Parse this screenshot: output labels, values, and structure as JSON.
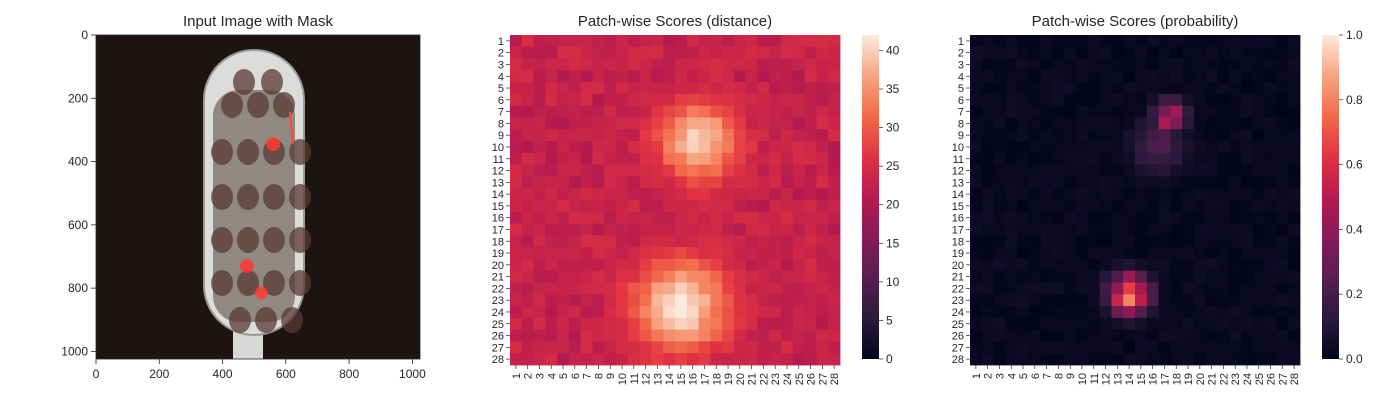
{
  "chart_data": [
    {
      "type": "image",
      "title": "Input Image with Mask",
      "xlim": [
        0,
        1024
      ],
      "ylim": [
        1024,
        0
      ],
      "xticks": [
        0,
        200,
        400,
        600,
        800,
        1000
      ],
      "yticks": [
        0,
        200,
        400,
        600,
        800,
        1000
      ],
      "mask_regions": [
        {
          "x": 560,
          "y": 345,
          "r": 22
        },
        {
          "x": 477,
          "y": 730,
          "r": 22
        },
        {
          "x": 522,
          "y": 815,
          "r": 20
        }
      ],
      "mask_color": "#ff3b2f"
    },
    {
      "type": "heatmap",
      "title": "Patch-wise Scores (distance)",
      "rows": 28,
      "cols": 28,
      "tick_labels": [
        "1",
        "2",
        "3",
        "4",
        "5",
        "6",
        "7",
        "8",
        "9",
        "10",
        "11",
        "12",
        "13",
        "14",
        "15",
        "16",
        "17",
        "18",
        "19",
        "20",
        "21",
        "22",
        "23",
        "24",
        "25",
        "26",
        "27",
        "28"
      ],
      "colorbar": {
        "min": 0,
        "max": 42,
        "ticks": [
          0,
          5,
          10,
          15,
          20,
          25,
          30,
          35,
          40
        ]
      },
      "colormap": "rocket",
      "baseline": 22,
      "hotspots": [
        {
          "row": 9.5,
          "col": 16.5,
          "peak": 40,
          "spread": 2.4
        },
        {
          "row": 23.5,
          "col": 15.0,
          "peak": 42,
          "spread": 2.8
        }
      ]
    },
    {
      "type": "heatmap",
      "title": "Patch-wise Scores (probability)",
      "rows": 28,
      "cols": 28,
      "tick_labels": [
        "1",
        "2",
        "3",
        "4",
        "5",
        "6",
        "7",
        "8",
        "9",
        "10",
        "11",
        "12",
        "13",
        "14",
        "15",
        "16",
        "17",
        "18",
        "19",
        "20",
        "21",
        "22",
        "23",
        "24",
        "25",
        "26",
        "27",
        "28"
      ],
      "colorbar": {
        "min": 0.0,
        "max": 1.0,
        "ticks": [
          "0.0",
          "0.2",
          "0.4",
          "0.6",
          "0.8",
          "1.0"
        ]
      },
      "colormap": "rocket",
      "hotspots": [
        {
          "row": 7.5,
          "col": 17.5,
          "peak": 0.55,
          "spread": 1.0
        },
        {
          "row": 10.0,
          "col": 16.5,
          "peak": 0.25,
          "spread": 1.6
        },
        {
          "row": 22.5,
          "col": 14.0,
          "peak": 0.75,
          "spread": 1.2
        }
      ]
    }
  ]
}
